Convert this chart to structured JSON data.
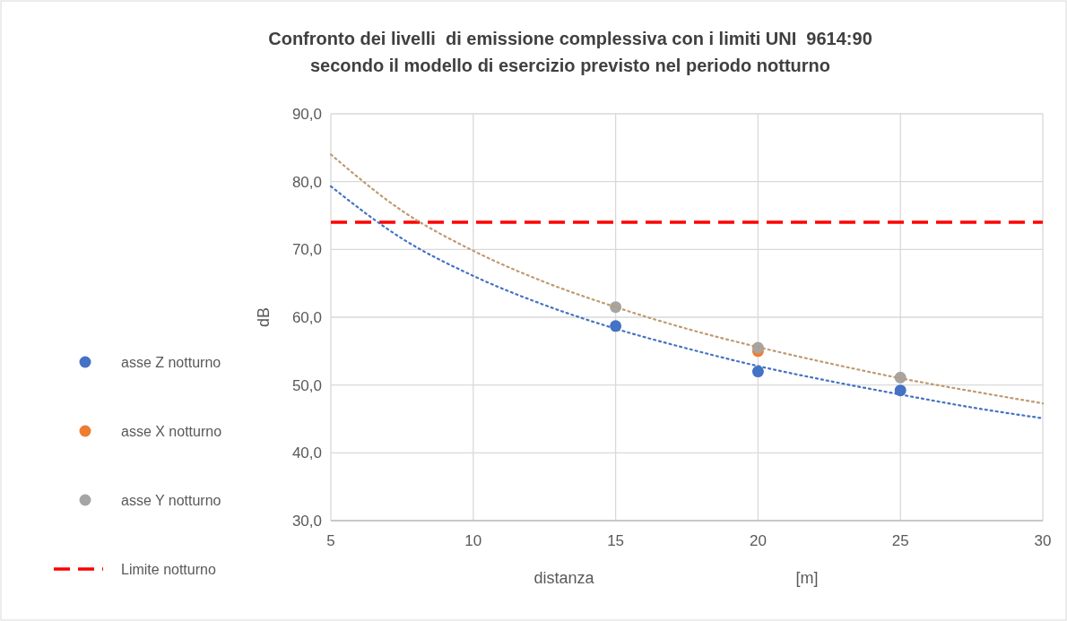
{
  "chart_data": {
    "type": "scatter",
    "title": "Confronto dei livelli  di emissione complessiva con i limiti UNI  9614:90\nsecondo il modello di esercizio previsto nel periodo notturno",
    "xlabel": "distanza",
    "ylabel": "dB",
    "annotations": [
      "[m]"
    ],
    "x": [
      15,
      20,
      25
    ],
    "series": [
      {
        "name": "asse Z notturno",
        "color": "#4472c4",
        "values": [
          58.7,
          52.0,
          49.2
        ]
      },
      {
        "name": "asse X notturno",
        "color": "#ed7d31",
        "values": [
          null,
          55.0,
          null
        ]
      },
      {
        "name": "asse Y notturno",
        "color": "#a5a5a5",
        "values": [
          61.5,
          55.5,
          51.1
        ]
      },
      {
        "type": "line",
        "color": "#4472c4",
        "line_style": "dotted",
        "marker": "none",
        "x": [
          5,
          7.5,
          10,
          12.5,
          15,
          17.5,
          20,
          22.5,
          25,
          27.5,
          30
        ],
        "values": [
          79.3,
          71.6,
          66.1,
          61.8,
          58.3,
          55.4,
          52.8,
          50.6,
          48.6,
          46.7,
          45.1
        ]
      },
      {
        "type": "line",
        "color": "#c09a72",
        "line_style": "dotted",
        "marker": "none",
        "x": [
          5,
          7.5,
          10,
          12.5,
          15,
          17.5,
          20,
          22.5,
          25,
          27.5,
          30
        ],
        "values": [
          84.0,
          75.7,
          69.8,
          65.2,
          61.5,
          58.3,
          55.6,
          53.2,
          51.0,
          49.1,
          47.3
        ]
      }
    ],
    "ref_lines": [
      {
        "axis": "y",
        "value": 74,
        "label": "Limite notturno",
        "color": "#ff0000",
        "line_style": "dashed"
      }
    ],
    "xlim": [
      5,
      30
    ],
    "xticks": [
      5,
      10,
      15,
      20,
      25,
      30
    ],
    "ylim": [
      30,
      90
    ],
    "yticks": [
      {
        "value": 30,
        "label": "30,0"
      },
      {
        "value": 40,
        "label": "40,0"
      },
      {
        "value": 50,
        "label": "50,0"
      },
      {
        "value": 60,
        "label": "60,0"
      },
      {
        "value": 70,
        "label": "70,0"
      },
      {
        "value": 80,
        "label": "80,0"
      },
      {
        "value": 90,
        "label": "90,0"
      }
    ],
    "grid": true,
    "legend": "left",
    "marker": "circle"
  }
}
